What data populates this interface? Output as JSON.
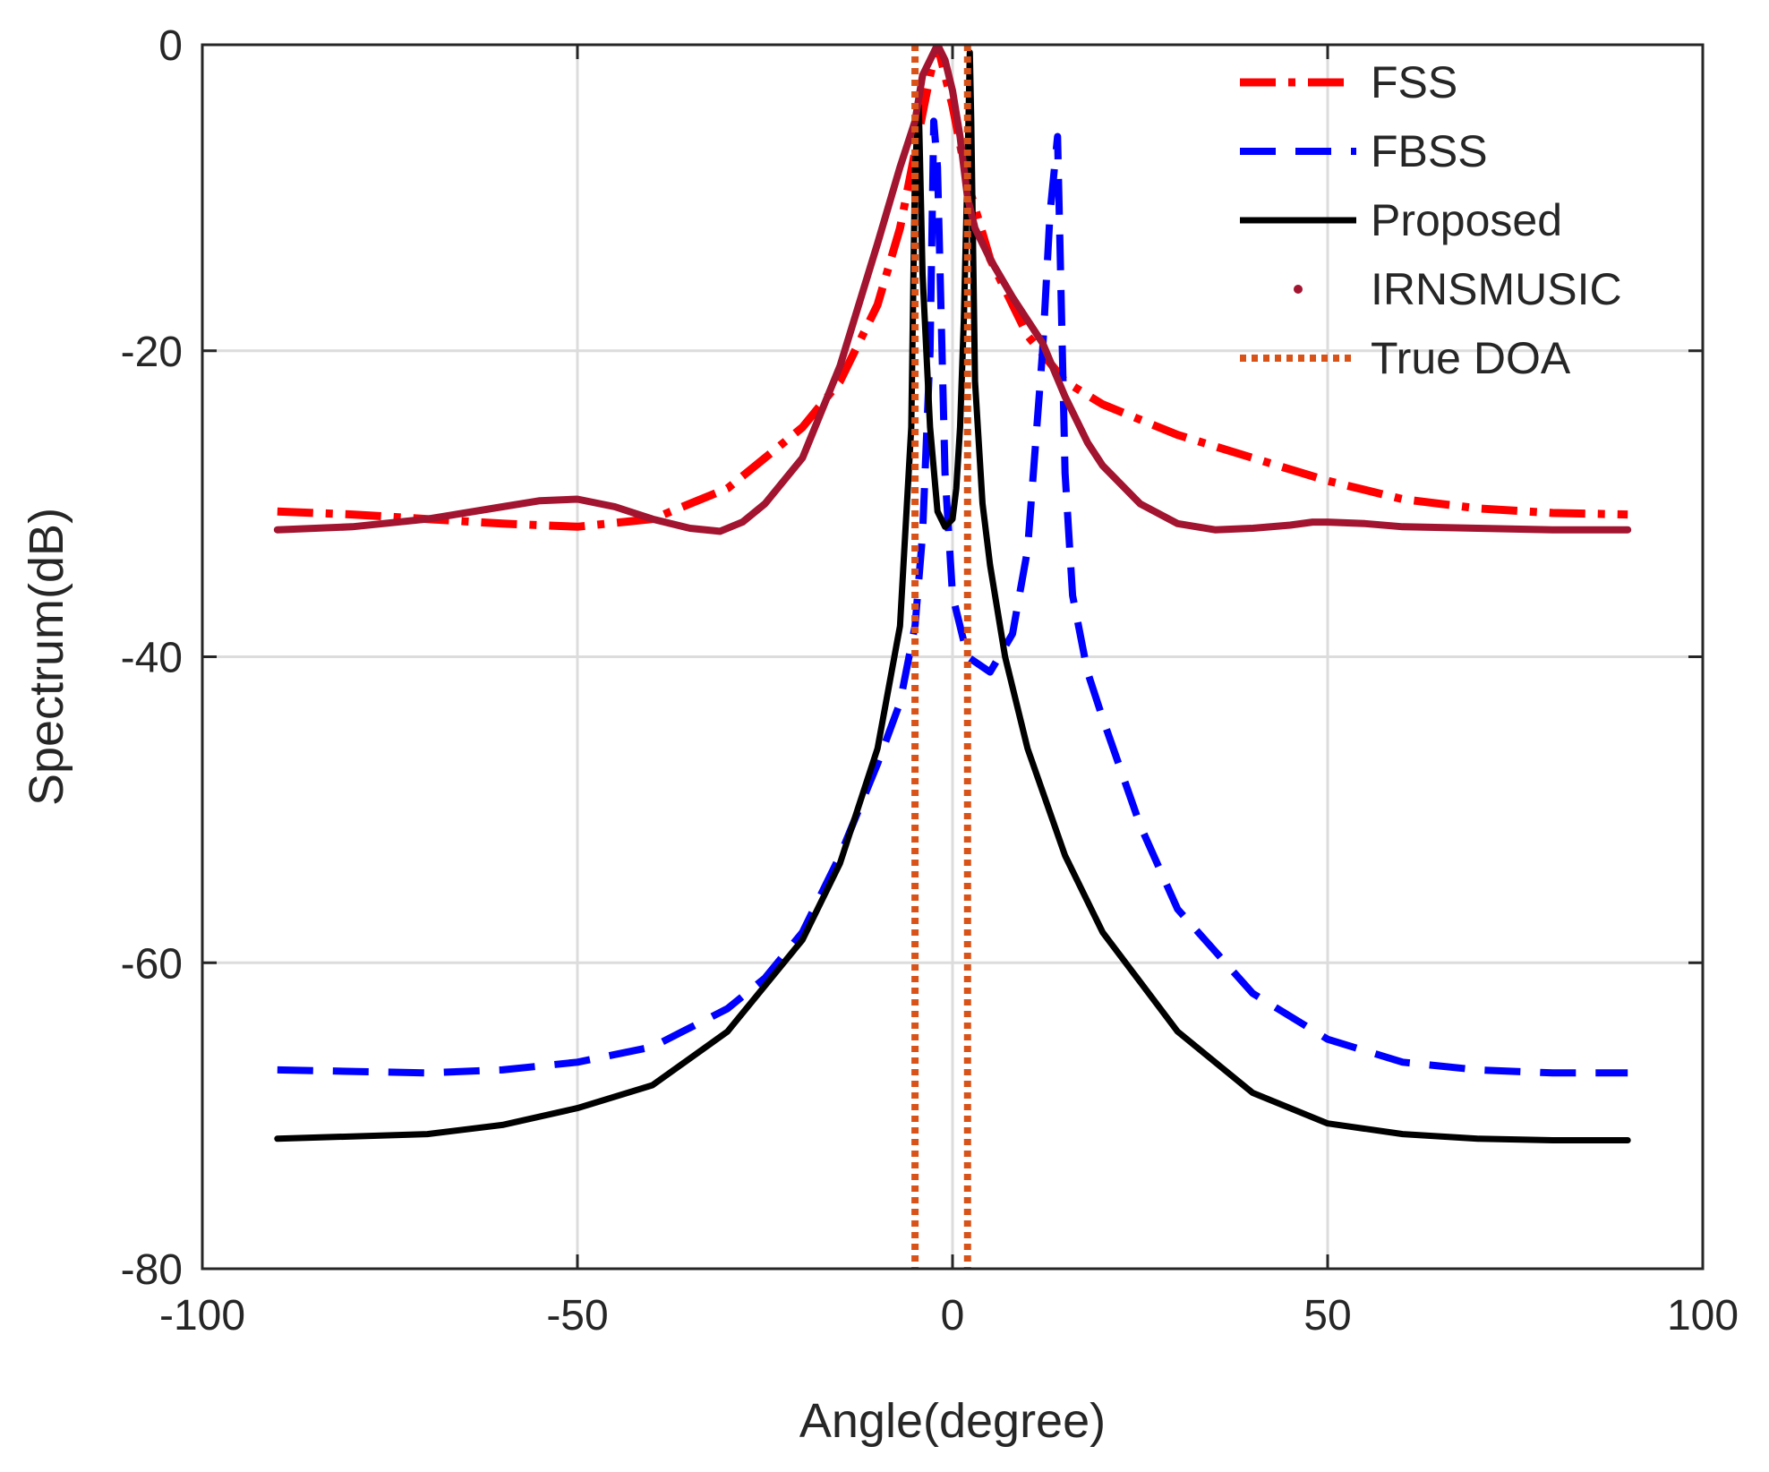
{
  "chart_data": {
    "type": "line",
    "title": "",
    "xlabel": "Angle(degree)",
    "ylabel": "Spectrum(dB)",
    "xlim": [
      -100,
      100
    ],
    "ylim": [
      -80,
      0
    ],
    "xticks": [
      -100,
      -50,
      0,
      50,
      100
    ],
    "xtick_labels": [
      "-100",
      "-50",
      "0",
      "50",
      "100"
    ],
    "yticks": [
      0,
      -20,
      -40,
      -60,
      -80
    ],
    "ytick_labels": [
      "0",
      "-20",
      "-40",
      "-60",
      "-80"
    ],
    "grid": true,
    "legend_position": "top-right",
    "series": [
      {
        "name": "FSS",
        "color": "#ff0000",
        "style": "dash-dot",
        "x": [
          -90,
          -80,
          -70,
          -60,
          -50,
          -40,
          -30,
          -20,
          -15,
          -10,
          -7,
          -5,
          -3,
          -2,
          0,
          2,
          5,
          10,
          15,
          20,
          30,
          40,
          50,
          60,
          70,
          80,
          90
        ],
        "y": [
          -30.5,
          -30.7,
          -31.0,
          -31.3,
          -31.5,
          -31.0,
          -29.0,
          -25.0,
          -22.0,
          -17.0,
          -12.0,
          -7.0,
          -2.0,
          0.0,
          -4.0,
          -9.0,
          -14.0,
          -19.0,
          -22.0,
          -23.5,
          -25.5,
          -27.0,
          -28.5,
          -29.7,
          -30.3,
          -30.6,
          -30.7
        ]
      },
      {
        "name": "FBSS",
        "color": "#0000ff",
        "style": "dashed",
        "x": [
          -90,
          -70,
          -60,
          -50,
          -40,
          -30,
          -25,
          -20,
          -15,
          -10,
          -7,
          -5,
          -4,
          -3,
          -2.5,
          -2,
          -1,
          0,
          2,
          5,
          8,
          10,
          12,
          13,
          14,
          15,
          16,
          18,
          20,
          25,
          30,
          40,
          50,
          60,
          70,
          80,
          90
        ],
        "y": [
          -67.0,
          -67.2,
          -67.0,
          -66.5,
          -65.5,
          -63.0,
          -61.0,
          -58.0,
          -53.0,
          -47.0,
          -43.0,
          -38.0,
          -32.0,
          -20.0,
          -5.0,
          -8.0,
          -28.0,
          -36.0,
          -40.0,
          -41.0,
          -38.5,
          -33.0,
          -20.0,
          -11.0,
          -6.0,
          -28.0,
          -36.0,
          -41.0,
          -44.0,
          -51.0,
          -56.5,
          -62.0,
          -65.0,
          -66.5,
          -67.0,
          -67.2,
          -67.2
        ]
      },
      {
        "name": "Proposed",
        "color": "#000000",
        "style": "solid",
        "x": [
          -90,
          -70,
          -60,
          -50,
          -40,
          -30,
          -20,
          -15,
          -10,
          -7,
          -5.5,
          -5,
          -4.5,
          -4,
          -3,
          -2,
          -1,
          0,
          0.5,
          1,
          1.5,
          2,
          2.3,
          2.5,
          3,
          4,
          5,
          7,
          10,
          15,
          20,
          30,
          40,
          50,
          60,
          70,
          80,
          90
        ],
        "y": [
          -71.5,
          -71.2,
          -70.6,
          -69.5,
          -68.0,
          -64.5,
          -58.5,
          -53.5,
          -46.0,
          -38.0,
          -25.0,
          -8.0,
          -4.0,
          -15.0,
          -25.0,
          -30.5,
          -31.5,
          -31.0,
          -29.0,
          -25.0,
          -18.0,
          -8.0,
          -0.5,
          -5.0,
          -22.0,
          -30.0,
          -34.0,
          -40.0,
          -46.0,
          -53.0,
          -58.0,
          -64.5,
          -68.5,
          -70.5,
          -71.2,
          -71.5,
          -71.6,
          -71.6
        ]
      },
      {
        "name": "IRNSMUSIC",
        "color": "#a2142f",
        "style": "dotted-marker",
        "x": [
          -90,
          -80,
          -70,
          -60,
          -55,
          -50,
          -45,
          -40,
          -35,
          -31,
          -28,
          -25,
          -20,
          -15,
          -10,
          -7,
          -5,
          -4,
          -3,
          -2,
          -1,
          0,
          1,
          2,
          3,
          5,
          8,
          10,
          12,
          15,
          18,
          20,
          25,
          30,
          35,
          40,
          45,
          48,
          50,
          55,
          60,
          70,
          80,
          90
        ],
        "y": [
          -31.7,
          -31.5,
          -31.0,
          -30.2,
          -29.8,
          -29.7,
          -30.2,
          -31.0,
          -31.6,
          -31.8,
          -31.2,
          -30.0,
          -27.0,
          -21.0,
          -13.0,
          -8.0,
          -5.0,
          -2.0,
          -1.0,
          0.0,
          -1.0,
          -3.0,
          -6.0,
          -10.0,
          -12.0,
          -14.0,
          -16.5,
          -18.0,
          -19.5,
          -23.0,
          -26.0,
          -27.5,
          -30.0,
          -31.3,
          -31.7,
          -31.6,
          -31.4,
          -31.2,
          -31.2,
          -31.3,
          -31.5,
          -31.6,
          -31.7,
          -31.7
        ]
      },
      {
        "name": "True DOA",
        "color": "#d95319",
        "style": "dotted",
        "x_lines": [
          -5,
          2
        ]
      }
    ]
  }
}
